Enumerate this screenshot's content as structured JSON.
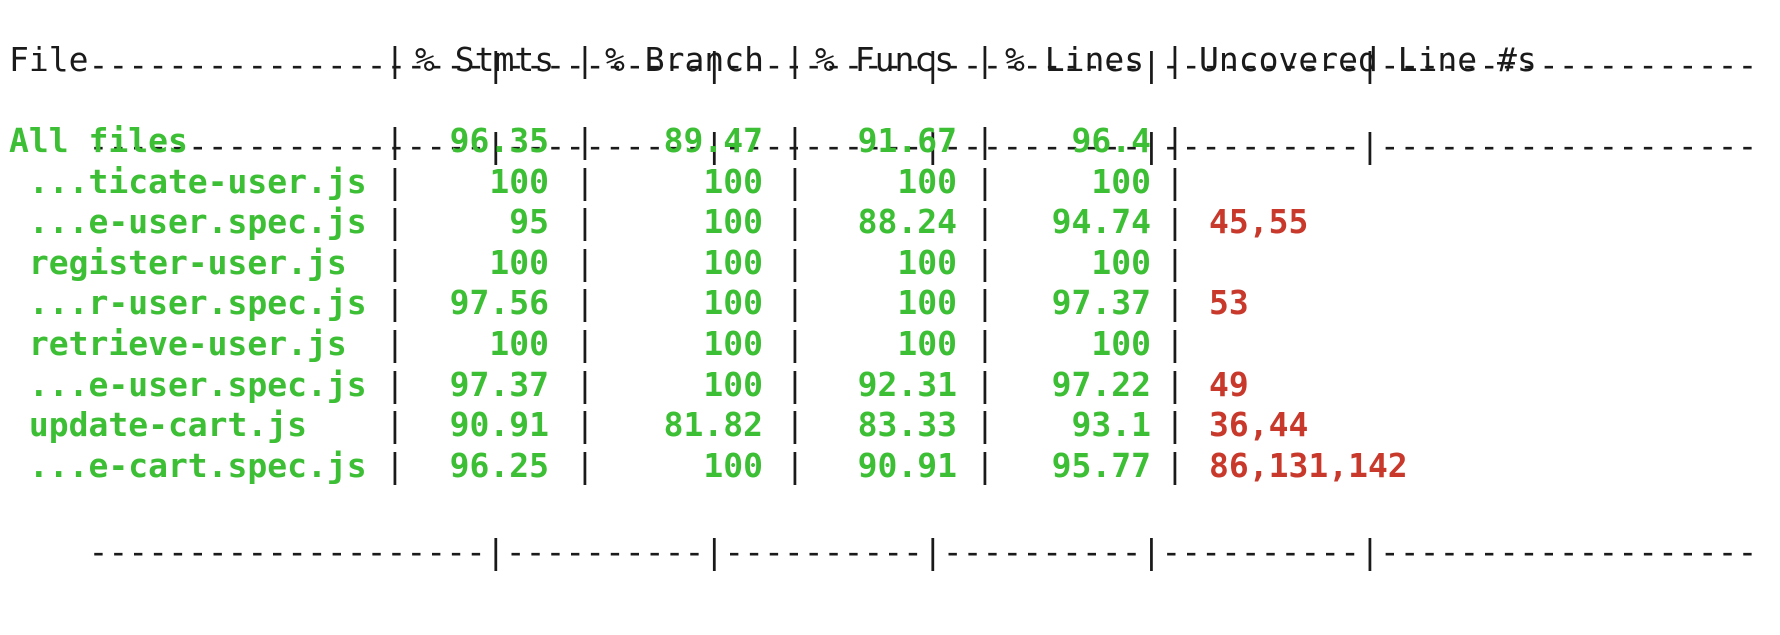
{
  "colors": {
    "background": "#ffffff",
    "text": "#1a1a1a",
    "covered": "#3cbf34",
    "uncovered": "#c8392c"
  },
  "separator": "--------------------|----------|----------|----------|----------|-------------------",
  "header": {
    "file": "File",
    "stmts": "% Stmts",
    "branch": "% Branch",
    "funcs": "% Funcs",
    "lines": "% Lines",
    "uncovered": "Uncovered Line #s"
  },
  "rows": [
    {
      "file": "All files",
      "stmts": "96.35",
      "branch": "89.47",
      "funcs": "91.67",
      "lines": "96.4",
      "uncovered": ""
    },
    {
      "file": " ...ticate-user.js",
      "stmts": "100",
      "branch": "100",
      "funcs": "100",
      "lines": "100",
      "uncovered": ""
    },
    {
      "file": " ...e-user.spec.js",
      "stmts": "95",
      "branch": "100",
      "funcs": "88.24",
      "lines": "94.74",
      "uncovered": "45,55"
    },
    {
      "file": " register-user.js",
      "stmts": "100",
      "branch": "100",
      "funcs": "100",
      "lines": "100",
      "uncovered": ""
    },
    {
      "file": " ...r-user.spec.js",
      "stmts": "97.56",
      "branch": "100",
      "funcs": "100",
      "lines": "97.37",
      "uncovered": "53"
    },
    {
      "file": " retrieve-user.js",
      "stmts": "100",
      "branch": "100",
      "funcs": "100",
      "lines": "100",
      "uncovered": ""
    },
    {
      "file": " ...e-user.spec.js",
      "stmts": "97.37",
      "branch": "100",
      "funcs": "92.31",
      "lines": "97.22",
      "uncovered": "49"
    },
    {
      "file": " update-cart.js",
      "stmts": "90.91",
      "branch": "81.82",
      "funcs": "83.33",
      "lines": "93.1",
      "uncovered": "36,44"
    },
    {
      "file": " ...e-cart.spec.js",
      "stmts": "96.25",
      "branch": "100",
      "funcs": "90.91",
      "lines": "95.77",
      "uncovered": "86,131,142"
    }
  ]
}
